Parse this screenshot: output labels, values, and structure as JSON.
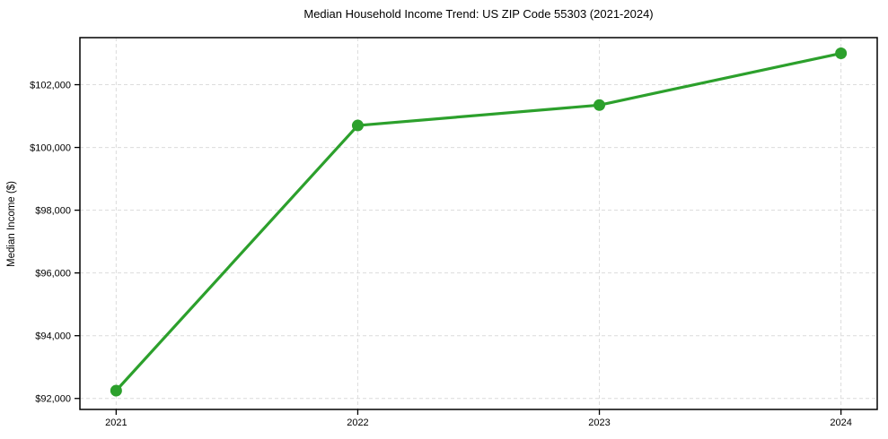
{
  "figure": {
    "background_color": "#ffffff"
  },
  "chart_data": {
    "type": "line",
    "title": "Median Household Income Trend: US ZIP Code 55303 (2021-2024)",
    "xlabel": "",
    "ylabel": "Median Income ($)",
    "x": [
      2021,
      2022,
      2023,
      2024
    ],
    "x_tick_labels": [
      "2021",
      "2022",
      "2023",
      "2024"
    ],
    "values": [
      92250,
      100700,
      101350,
      103000
    ],
    "y_ticks": [
      92000,
      94000,
      96000,
      98000,
      100000,
      102000
    ],
    "y_tick_labels": [
      "$92,000",
      "$94,000",
      "$96,000",
      "$98,000",
      "$100,000",
      "$102,000"
    ],
    "xlim": [
      2020.85,
      2024.15
    ],
    "ylim": [
      91650,
      103500
    ],
    "grid": true,
    "grid_line_style": "dashed",
    "legend_position": "none",
    "line_color": "#2ca02c",
    "marker_color": "#2ca02c",
    "marker": "circle",
    "grid_color": "#dcdcdc",
    "axis_color": "#000000",
    "text_color": "#000000"
  }
}
